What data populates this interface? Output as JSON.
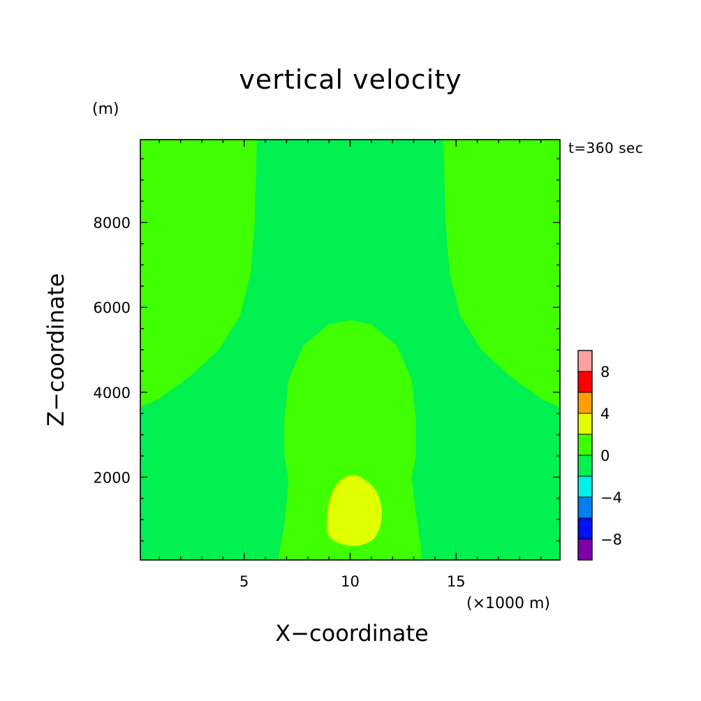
{
  "chart_data": {
    "type": "heatmap",
    "title": "vertical velocity",
    "xlabel": "X−coordinate",
    "ylabel": "Z−coordinate",
    "x_unit": "(×1000 m)",
    "y_unit": "(m)",
    "annotation": "t=360 sec",
    "xlim": [
      0.1,
      19.9
    ],
    "ylim": [
      50,
      9950
    ],
    "x_ticks": [
      5,
      10,
      15
    ],
    "x_tick_labels": [
      "5",
      "10",
      "15"
    ],
    "y_ticks": [
      2000,
      4000,
      6000,
      8000
    ],
    "y_tick_labels": [
      "2000",
      "4000",
      "6000",
      "8000"
    ],
    "colorbar": {
      "levels": [
        -10,
        -8,
        -6,
        -4,
        -2,
        0,
        2,
        4,
        6,
        8,
        10
      ],
      "colors": [
        "#8000a8",
        "#0010f0",
        "#0080f0",
        "#00f0e8",
        "#00f050",
        "#40ff00",
        "#e0ff00",
        "#ffa000",
        "#ff0000",
        "#ffa0a0"
      ],
      "tick_values": [
        -8,
        -4,
        0,
        4,
        8
      ],
      "tick_labels": [
        "−8",
        "−4",
        "0",
        "4",
        "8"
      ]
    },
    "background_level": "0 to -2",
    "regions": [
      {
        "name": "upper-left-lobe",
        "level": "0 to 2",
        "outline": [
          [
            0.1,
            3650
          ],
          [
            1,
            3850
          ],
          [
            2.5,
            4400
          ],
          [
            3.8,
            5000
          ],
          [
            4.8,
            5800
          ],
          [
            5.3,
            6800
          ],
          [
            5.5,
            8000
          ],
          [
            5.6,
            9950
          ],
          [
            0.1,
            9950
          ]
        ]
      },
      {
        "name": "upper-right-lobe",
        "level": "0 to 2",
        "outline": [
          [
            19.9,
            3650
          ],
          [
            19,
            3850
          ],
          [
            17.5,
            4400
          ],
          [
            16.2,
            5000
          ],
          [
            15.2,
            5800
          ],
          [
            14.7,
            6800
          ],
          [
            14.5,
            8000
          ],
          [
            14.4,
            9950
          ],
          [
            19.9,
            9950
          ]
        ]
      },
      {
        "name": "central-plume",
        "level": "0 to 2",
        "outline": [
          [
            6.6,
            50
          ],
          [
            6.9,
            900
          ],
          [
            7.1,
            1900
          ],
          [
            6.9,
            2500
          ],
          [
            6.9,
            3400
          ],
          [
            7.1,
            4300
          ],
          [
            7.8,
            5100
          ],
          [
            9,
            5600
          ],
          [
            10,
            5700
          ],
          [
            11,
            5600
          ],
          [
            12.2,
            5100
          ],
          [
            12.9,
            4300
          ],
          [
            13.1,
            3400
          ],
          [
            13.1,
            2500
          ],
          [
            12.9,
            2000
          ],
          [
            13.1,
            1200
          ],
          [
            13.4,
            50
          ]
        ]
      },
      {
        "name": "updraft-core",
        "level": "2 to 4",
        "outline": [
          [
            10.1,
            2050
          ],
          [
            10.8,
            1900
          ],
          [
            11.3,
            1600
          ],
          [
            11.5,
            1100
          ],
          [
            11.2,
            600
          ],
          [
            10.5,
            400
          ],
          [
            9.8,
            400
          ],
          [
            9.1,
            550
          ],
          [
            8.9,
            800
          ],
          [
            9,
            1400
          ],
          [
            9.4,
            1850
          ]
        ]
      }
    ]
  }
}
